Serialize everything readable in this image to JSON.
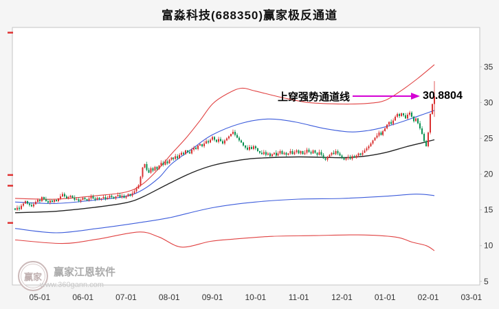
{
  "title": "富淼科技(688350)赢家极反通道",
  "annotation": {
    "text": "上穿强势通道线",
    "price_label": "30.8804",
    "arrow_color": "#d400d4"
  },
  "watermark": {
    "logo_text": "赢家",
    "name": "赢家江恩软件",
    "url": "www.360gann.com"
  },
  "colors": {
    "up": "#d93030",
    "down": "#089050",
    "channel_red": "#e04040",
    "channel_blue": "#3b5bdb",
    "life_black": "#222222",
    "axis_text": "#333333",
    "plot_border": "#c4c4c4",
    "plot_bg": "#ffffff",
    "background": "#f5f5f5",
    "left_tick_red": "#e03030"
  },
  "chart_data": {
    "type": "candlestick",
    "title": "富淼科技(688350)赢家极反通道",
    "xlabel": "",
    "ylabel": "",
    "grid": false,
    "legend": "none",
    "y_ticks": [
      35,
      30,
      25,
      20,
      15,
      10,
      5
    ],
    "y_range": [
      4.5,
      40.5
    ],
    "last_price": 30.8804,
    "x_labels": [
      {
        "label": "05-01",
        "day": 12
      },
      {
        "label": "06-01",
        "day": 33
      },
      {
        "label": "07-01",
        "day": 54
      },
      {
        "label": "08-01",
        "day": 75
      },
      {
        "label": "09-01",
        "day": 96
      },
      {
        "label": "10-01",
        "day": 117
      },
      {
        "label": "11-01",
        "day": 138
      },
      {
        "label": "12-01",
        "day": 159
      },
      {
        "label": "01-01",
        "day": 180
      },
      {
        "label": "02-01",
        "day": 201
      },
      {
        "label": "03-01",
        "day": 222
      }
    ],
    "closes": [
      15.0,
      15.3,
      15.1,
      15.6,
      15.9,
      16.2,
      15.9,
      15.7,
      15.5,
      15.8,
      16.1,
      16.4,
      16.2,
      16.8,
      16.5,
      16.2,
      16.0,
      16.3,
      16.1,
      16.4,
      16.2,
      16.6,
      16.9,
      17.2,
      16.9,
      16.6,
      16.8,
      17.0,
      16.7,
      16.4,
      16.5,
      16.2,
      16.4,
      16.7,
      16.5,
      16.3,
      16.6,
      16.9,
      16.6,
      16.4,
      16.7,
      16.5,
      16.6,
      16.8,
      16.5,
      16.7,
      17.0,
      16.8,
      16.6,
      16.9,
      17.1,
      16.8,
      17.0,
      16.7,
      16.9,
      17.2,
      17.0,
      17.3,
      17.6,
      18.0,
      18.4,
      19.6,
      20.9,
      21.4,
      20.6,
      20.2,
      20.8,
      20.5,
      21.0,
      20.7,
      21.2,
      21.6,
      21.3,
      21.8,
      21.5,
      22.0,
      22.3,
      22.1,
      22.5,
      22.2,
      22.7,
      23.0,
      22.8,
      23.3,
      23.1,
      22.9,
      23.4,
      23.7,
      23.5,
      24.0,
      24.2,
      23.9,
      24.3,
      24.6,
      24.4,
      24.8,
      25.2,
      24.8,
      24.5,
      24.9,
      24.6,
      24.3,
      24.7,
      25.0,
      25.3,
      25.6,
      25.9,
      25.5,
      25.1,
      24.7,
      24.4,
      24.0,
      23.7,
      23.4,
      23.8,
      23.5,
      23.9,
      23.6,
      23.2,
      23.0,
      22.8,
      23.1,
      22.7,
      22.9,
      22.5,
      22.8,
      23.0,
      22.6,
      22.9,
      23.2,
      22.8,
      23.0,
      22.7,
      22.9,
      23.2,
      22.8,
      23.1,
      23.3,
      22.9,
      23.2,
      22.8,
      23.0,
      23.4,
      23.1,
      22.9,
      23.3,
      23.0,
      22.7,
      23.1,
      22.7,
      22.2,
      22.0,
      22.4,
      22.7,
      23.0,
      22.8,
      23.2,
      22.9,
      22.6,
      22.3,
      22.0,
      22.2,
      22.4,
      22.1,
      22.5,
      22.3,
      22.6,
      22.9,
      22.7,
      23.0,
      23.3,
      23.6,
      23.9,
      24.3,
      24.7,
      25.1,
      25.4,
      25.8,
      25.5,
      26.0,
      26.4,
      26.9,
      27.3,
      27.0,
      27.5,
      28.0,
      28.4,
      28.1,
      28.5,
      28.2,
      27.8,
      28.3,
      28.6,
      28.0,
      27.4,
      27.8,
      27.1,
      26.4,
      25.6,
      24.6,
      23.9,
      25.8,
      28.4,
      29.8,
      30.88
    ],
    "wick_overrides": {
      "204": {
        "high": 33.0,
        "low": 28.0
      }
    },
    "channel_lines": [
      {
        "name": "sky-line",
        "color": "red",
        "points": [
          [
            0,
            16.6
          ],
          [
            20,
            16.5
          ],
          [
            40,
            17.0
          ],
          [
            54,
            17.5
          ],
          [
            62,
            18.6
          ],
          [
            70,
            20.8
          ],
          [
            76,
            22.8
          ],
          [
            83,
            25.0
          ],
          [
            90,
            27.5
          ],
          [
            96,
            29.8
          ],
          [
            103,
            31.2
          ],
          [
            110,
            32.0
          ],
          [
            117,
            31.6
          ],
          [
            130,
            30.7
          ],
          [
            143,
            30.0
          ],
          [
            160,
            29.8
          ],
          [
            172,
            29.9
          ],
          [
            180,
            30.3
          ],
          [
            188,
            31.7
          ],
          [
            196,
            33.4
          ],
          [
            204,
            35.3
          ]
        ]
      },
      {
        "name": "strong-line",
        "color": "blue",
        "points": [
          [
            0,
            16.1
          ],
          [
            20,
            15.9
          ],
          [
            40,
            16.4
          ],
          [
            54,
            16.9
          ],
          [
            62,
            17.8
          ],
          [
            70,
            19.5
          ],
          [
            76,
            21.4
          ],
          [
            86,
            23.5
          ],
          [
            96,
            25.5
          ],
          [
            110,
            27.1
          ],
          [
            123,
            27.7
          ],
          [
            136,
            27.3
          ],
          [
            150,
            26.4
          ],
          [
            163,
            25.9
          ],
          [
            172,
            26.1
          ],
          [
            180,
            26.6
          ],
          [
            188,
            27.3
          ],
          [
            196,
            28.1
          ],
          [
            204,
            28.9
          ]
        ]
      },
      {
        "name": "life-line",
        "color": "black",
        "points": [
          [
            0,
            14.6
          ],
          [
            20,
            14.8
          ],
          [
            40,
            15.4
          ],
          [
            54,
            16.0
          ],
          [
            62,
            16.8
          ],
          [
            75,
            18.7
          ],
          [
            86,
            20.2
          ],
          [
            96,
            21.2
          ],
          [
            106,
            21.8
          ],
          [
            117,
            22.2
          ],
          [
            138,
            22.4
          ],
          [
            159,
            22.3
          ],
          [
            170,
            22.5
          ],
          [
            180,
            23.0
          ],
          [
            190,
            23.8
          ],
          [
            197,
            24.3
          ],
          [
            204,
            24.8
          ]
        ]
      },
      {
        "name": "weak-line",
        "color": "blue",
        "points": [
          [
            0,
            12.4
          ],
          [
            20,
            11.8
          ],
          [
            40,
            12.4
          ],
          [
            60,
            13.2
          ],
          [
            75,
            13.9
          ],
          [
            96,
            15.3
          ],
          [
            117,
            16.1
          ],
          [
            138,
            16.5
          ],
          [
            159,
            16.6
          ],
          [
            180,
            16.9
          ],
          [
            195,
            17.2
          ],
          [
            204,
            17.0
          ]
        ]
      },
      {
        "name": "ground-line",
        "color": "red",
        "points": [
          [
            0,
            10.8
          ],
          [
            23,
            10.3
          ],
          [
            40,
            10.9
          ],
          [
            60,
            11.9
          ],
          [
            70,
            11.2
          ],
          [
            81,
            9.8
          ],
          [
            95,
            10.6
          ],
          [
            106,
            10.9
          ],
          [
            125,
            11.3
          ],
          [
            145,
            11.4
          ],
          [
            167,
            11.5
          ],
          [
            185,
            11.2
          ],
          [
            193,
            10.5
          ],
          [
            200,
            10.0
          ],
          [
            204,
            9.3
          ]
        ]
      }
    ],
    "left_ticks": [
      39.8,
      19.9,
      18.4,
      13.2
    ]
  }
}
